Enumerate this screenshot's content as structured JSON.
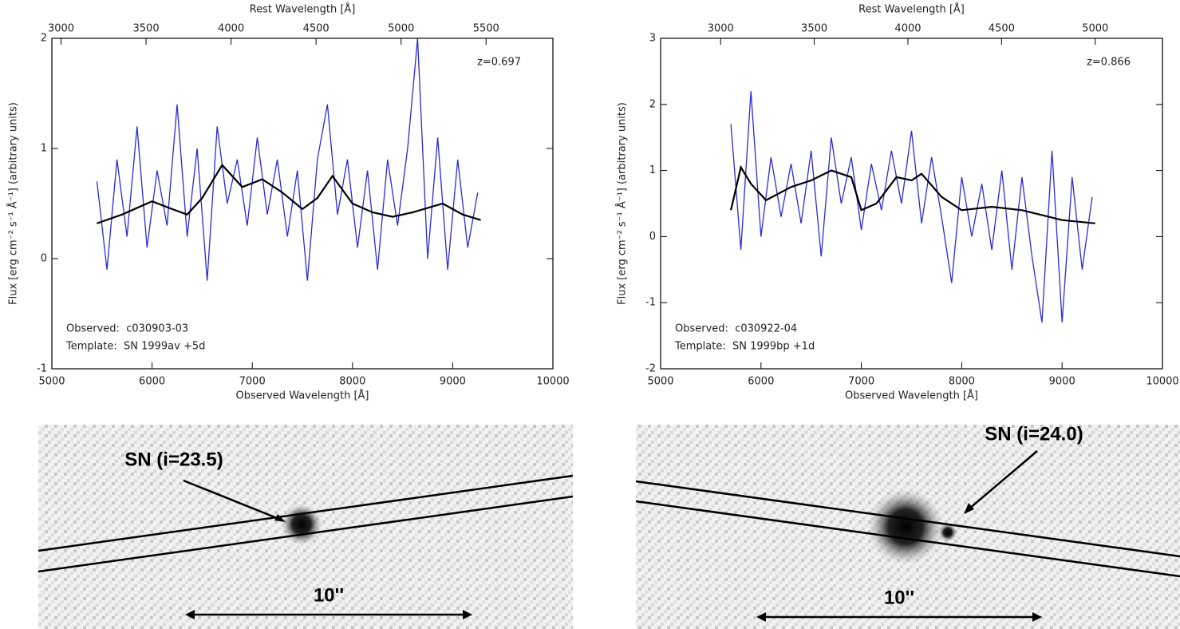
{
  "chart_data": [
    {
      "type": "line",
      "x_label": "Observed Wavelength [Å]",
      "x2_label": "Rest Wavelength [Å]",
      "y_label": "Flux [erg cm⁻² s⁻¹ Å⁻¹]  (arbitrary units)",
      "annotation": "z=0.697",
      "xlim": [
        5000,
        10000
      ],
      "xticks": [
        5000,
        6000,
        7000,
        8000,
        9000,
        10000
      ],
      "x2lim": [
        2946,
        5893
      ],
      "x2ticks": [
        3000,
        3500,
        4000,
        4500,
        5000,
        5500
      ],
      "ylim": [
        -1,
        2
      ],
      "yticks": [
        -1,
        0,
        1,
        2
      ],
      "series": [
        {
          "name": "Observed:  c030903-03",
          "color": "#2a2ad8",
          "x": [
            5450,
            5550,
            5650,
            5750,
            5850,
            5950,
            6050,
            6150,
            6250,
            6350,
            6450,
            6550,
            6650,
            6750,
            6850,
            6950,
            7050,
            7150,
            7250,
            7350,
            7450,
            7550,
            7650,
            7750,
            7850,
            7950,
            8050,
            8150,
            8250,
            8350,
            8450,
            8550,
            8650,
            8750,
            8850,
            8950,
            9050,
            9150,
            9250
          ],
          "values": [
            0.7,
            -0.1,
            0.9,
            0.2,
            1.2,
            0.1,
            0.8,
            0.3,
            1.4,
            0.2,
            1.0,
            -0.2,
            1.2,
            0.5,
            0.9,
            0.3,
            1.1,
            0.4,
            0.9,
            0.2,
            0.8,
            -0.2,
            0.9,
            1.4,
            0.4,
            0.9,
            0.1,
            0.8,
            -0.1,
            0.9,
            0.3,
            1.0,
            2.0,
            0.0,
            1.1,
            -0.1,
            0.9,
            0.1,
            0.6
          ]
        },
        {
          "name": "Template:  SN 1999av +5d",
          "color": "#000000",
          "x": [
            5450,
            5700,
            6000,
            6200,
            6350,
            6500,
            6700,
            6900,
            7100,
            7300,
            7500,
            7650,
            7800,
            8000,
            8200,
            8400,
            8600,
            8900,
            9100,
            9280
          ],
          "values": [
            0.32,
            0.4,
            0.52,
            0.45,
            0.4,
            0.55,
            0.85,
            0.65,
            0.72,
            0.6,
            0.45,
            0.55,
            0.75,
            0.5,
            0.42,
            0.38,
            0.42,
            0.5,
            0.4,
            0.35
          ]
        }
      ]
    },
    {
      "type": "line",
      "x_label": "Observed Wavelength [Å]",
      "x2_label": "Rest Wavelength [Å]",
      "y_label": "Flux [erg cm⁻² s⁻¹ Å⁻¹]  (arbitrary units)",
      "annotation": "z=0.866",
      "xlim": [
        5000,
        10000
      ],
      "xticks": [
        5000,
        6000,
        7000,
        8000,
        9000,
        10000
      ],
      "x2lim": [
        2679.5,
        5359
      ],
      "x2ticks": [
        3000,
        3500,
        4000,
        4500,
        5000
      ],
      "ylim": [
        -2,
        3
      ],
      "yticks": [
        -2,
        -1,
        0,
        1,
        2,
        3
      ],
      "series": [
        {
          "name": "Observed:  c030922-04",
          "color": "#2a2ad8",
          "x": [
            5700,
            5800,
            5900,
            6000,
            6100,
            6200,
            6300,
            6400,
            6500,
            6600,
            6700,
            6800,
            6900,
            7000,
            7100,
            7200,
            7300,
            7400,
            7500,
            7600,
            7700,
            7800,
            7900,
            8000,
            8100,
            8200,
            8300,
            8400,
            8500,
            8600,
            8700,
            8800,
            8900,
            9000,
            9100,
            9200,
            9300
          ],
          "values": [
            1.7,
            -0.2,
            2.2,
            0.0,
            1.2,
            0.3,
            1.1,
            0.2,
            1.3,
            -0.3,
            1.5,
            0.5,
            1.2,
            0.1,
            1.1,
            0.4,
            1.3,
            0.5,
            1.6,
            0.2,
            1.2,
            0.3,
            -0.7,
            0.9,
            0.0,
            0.8,
            -0.2,
            1.0,
            -0.5,
            0.9,
            -0.3,
            -1.3,
            1.3,
            -1.3,
            0.9,
            -0.5,
            0.6
          ]
        },
        {
          "name": "Template:  SN 1999bp +1d",
          "color": "#000000",
          "x": [
            5700,
            5800,
            5900,
            6050,
            6300,
            6500,
            6700,
            6900,
            7000,
            7150,
            7350,
            7500,
            7600,
            7800,
            8000,
            8300,
            8600,
            9000,
            9330
          ],
          "values": [
            0.4,
            1.05,
            0.8,
            0.55,
            0.75,
            0.85,
            1.0,
            0.9,
            0.4,
            0.5,
            0.9,
            0.85,
            0.95,
            0.6,
            0.4,
            0.45,
            0.4,
            0.25,
            0.2
          ]
        }
      ]
    }
  ],
  "images": [
    {
      "label": "SN (i=23.5)",
      "scale": "10''"
    },
    {
      "label": "SN (i=24.0)",
      "scale": "10''"
    }
  ]
}
